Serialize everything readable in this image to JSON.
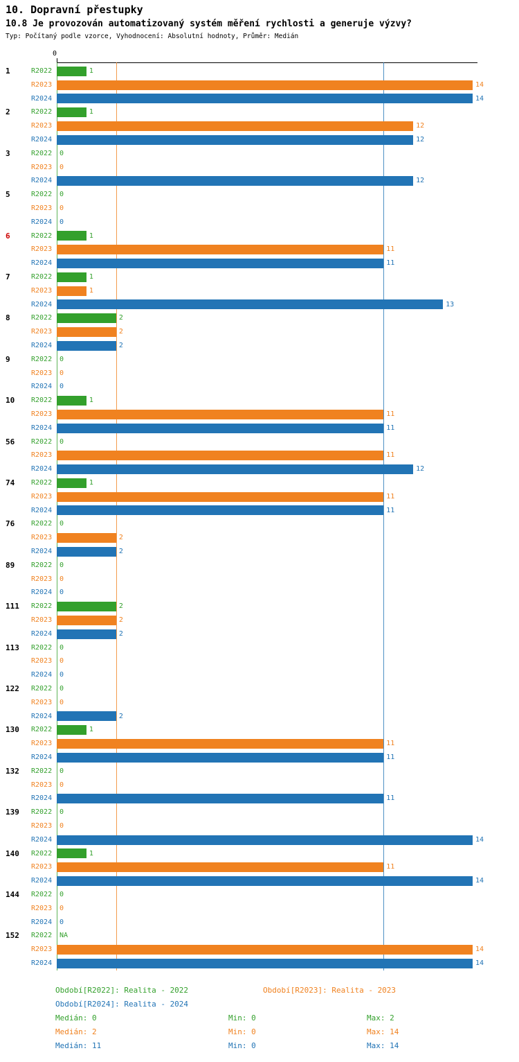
{
  "header": {
    "title": "10. Dopravní přestupky",
    "subtitle": "10.8 Je provozován automatizovaný systém měření rychlosti a generuje výzvy?",
    "meta": "Typ: Počítaný podle vzorce, Vyhodnocení: Absolutní hodnoty, Průměr: Medián"
  },
  "chart_data": {
    "type": "bar",
    "orientation": "horizontal",
    "title": "10.8 Je provozován automatizovaný systém měření rychlosti a generuje výzvy?",
    "axis": {
      "zero_label": "0",
      "min": 0,
      "max": 14
    },
    "series": [
      {
        "key": "R2022",
        "label": "R2022",
        "color": "#33a02c",
        "median": 0
      },
      {
        "key": "R2023",
        "label": "R2023",
        "color": "#f08220",
        "median": 2
      },
      {
        "key": "R2024",
        "label": "R2024",
        "color": "#2274b5",
        "median": 11
      }
    ],
    "groups": [
      {
        "id": "1",
        "values": [
          1,
          14,
          14
        ]
      },
      {
        "id": "2",
        "values": [
          1,
          12,
          12
        ]
      },
      {
        "id": "3",
        "values": [
          0,
          0,
          12
        ]
      },
      {
        "id": "5",
        "values": [
          0,
          0,
          0
        ]
      },
      {
        "id": "6",
        "id_color": "#cc0000",
        "values": [
          1,
          11,
          11
        ]
      },
      {
        "id": "7",
        "values": [
          1,
          1,
          13
        ]
      },
      {
        "id": "8",
        "values": [
          2,
          2,
          2
        ]
      },
      {
        "id": "9",
        "values": [
          0,
          0,
          0
        ]
      },
      {
        "id": "10",
        "values": [
          1,
          11,
          11
        ]
      },
      {
        "id": "56",
        "values": [
          0,
          11,
          12
        ]
      },
      {
        "id": "74",
        "values": [
          1,
          11,
          11
        ]
      },
      {
        "id": "76",
        "values": [
          0,
          2,
          2
        ]
      },
      {
        "id": "89",
        "values": [
          0,
          0,
          0
        ]
      },
      {
        "id": "111",
        "values": [
          2,
          2,
          2
        ]
      },
      {
        "id": "113",
        "values": [
          0,
          0,
          0
        ]
      },
      {
        "id": "122",
        "values": [
          0,
          0,
          2
        ]
      },
      {
        "id": "130",
        "values": [
          1,
          11,
          11
        ]
      },
      {
        "id": "132",
        "values": [
          0,
          0,
          11
        ]
      },
      {
        "id": "139",
        "values": [
          0,
          0,
          14
        ]
      },
      {
        "id": "140",
        "values": [
          1,
          11,
          14
        ]
      },
      {
        "id": "144",
        "values": [
          0,
          0,
          0
        ]
      },
      {
        "id": "152",
        "values": [
          "NA",
          14,
          14
        ]
      }
    ]
  },
  "legend": {
    "items": [
      {
        "label": "Období[R2022]: Realita - 2022",
        "color": "#33a02c"
      },
      {
        "label": "Období[R2023]: Realita - 2023",
        "color": "#f08220"
      },
      {
        "label": "Období[R2024]: Realita - 2024",
        "color": "#2274b5"
      }
    ],
    "stats": [
      {
        "median": "Medián: 0",
        "min": "Min: 0",
        "max": "Max: 2",
        "color": "#33a02c"
      },
      {
        "median": "Medián: 2",
        "min": "Min: 0",
        "max": "Max: 14",
        "color": "#f08220"
      },
      {
        "median": "Medián: 11",
        "min": "Min: 0",
        "max": "Max: 14",
        "color": "#2274b5"
      }
    ]
  }
}
